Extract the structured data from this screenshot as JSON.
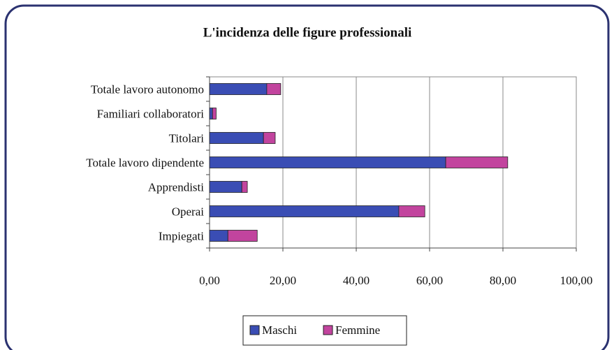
{
  "chart_data": {
    "type": "stacked_bar_horizontal",
    "title": "L'incidenza delle figure professionali",
    "categories": [
      "Totale lavoro autonomo",
      "Familiari collaboratori",
      "Titolari",
      "Totale lavoro dipendente",
      "Apprendisti",
      "Operai",
      "Impiegati"
    ],
    "series": [
      {
        "name": "Maschi",
        "color": "#3a4db4",
        "values": [
          15.6,
          0.8,
          14.7,
          64.4,
          8.8,
          51.6,
          5.0
        ]
      },
      {
        "name": "Femmine",
        "color": "#c2449e",
        "values": [
          3.8,
          1.0,
          3.2,
          16.9,
          1.5,
          7.1,
          8.0
        ]
      }
    ],
    "xlim": [
      0,
      100
    ],
    "xticks": [
      {
        "value": 0,
        "label": "0,00"
      },
      {
        "value": 20,
        "label": "20,00"
      },
      {
        "value": 40,
        "label": "40,00"
      },
      {
        "value": 60,
        "label": "60,00"
      },
      {
        "value": 80,
        "label": "80,00"
      },
      {
        "value": 100,
        "label": "100,00"
      }
    ],
    "grid": true,
    "legend": "bottom"
  }
}
